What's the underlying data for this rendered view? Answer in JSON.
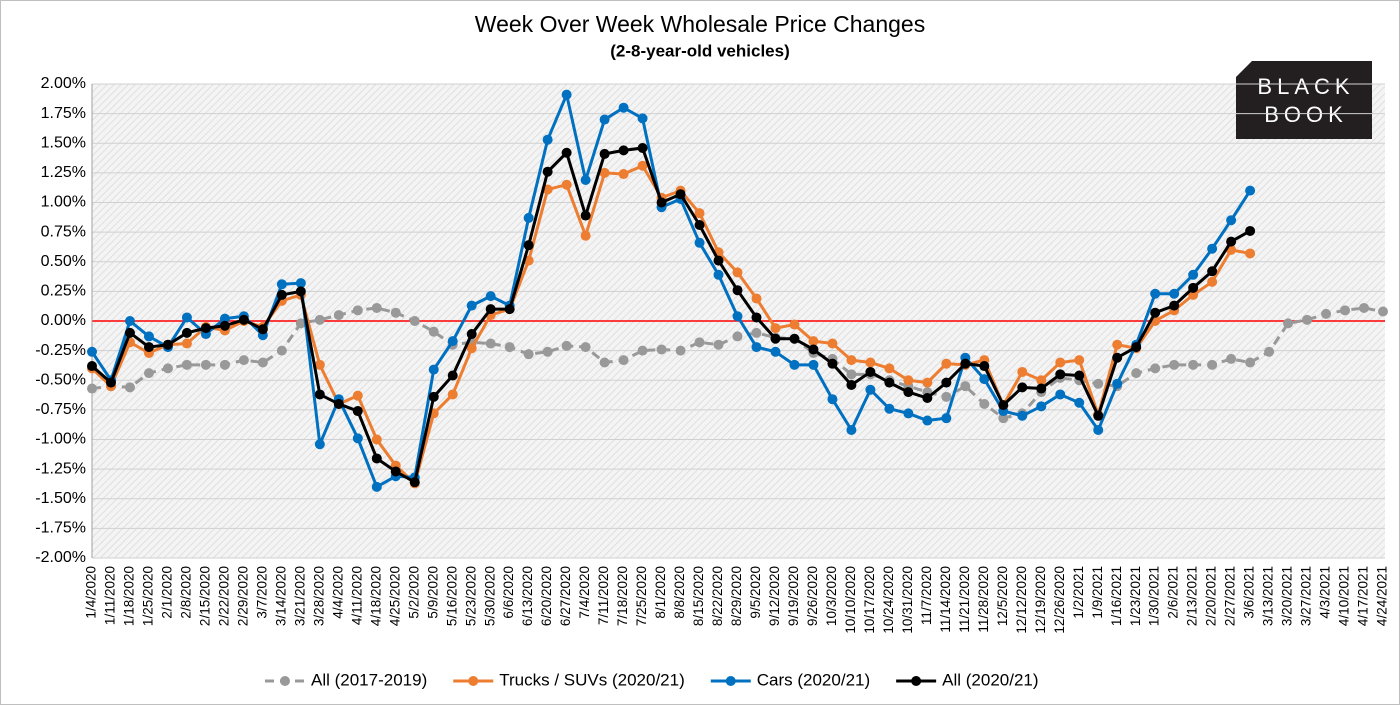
{
  "logo": [
    "BLACK",
    "BOOK"
  ],
  "chart_data": {
    "type": "line",
    "title": "Week Over Week Wholesale Price Changes",
    "subtitle": "(2-8-year-old vehicles)",
    "categories": [
      "1/4/2020",
      "1/11/2020",
      "1/18/2020",
      "1/25/2020",
      "2/1/2020",
      "2/8/2020",
      "2/15/2020",
      "2/22/2020",
      "2/29/2020",
      "3/7/2020",
      "3/14/2020",
      "3/21/2020",
      "3/28/2020",
      "4/4/2020",
      "4/11/2020",
      "4/18/2020",
      "4/25/2020",
      "5/2/2020",
      "5/9/2020",
      "5/16/2020",
      "5/23/2020",
      "5/30/2020",
      "6/6/2020",
      "6/13/2020",
      "6/20/2020",
      "6/27/2020",
      "7/4/2020",
      "7/11/2020",
      "7/18/2020",
      "7/25/2020",
      "8/1/2020",
      "8/8/2020",
      "8/15/2020",
      "8/22/2020",
      "8/29/2020",
      "9/5/2020",
      "9/12/2020",
      "9/19/2020",
      "9/26/2020",
      "10/3/2020",
      "10/10/2020",
      "10/17/2020",
      "10/24/2020",
      "10/31/2020",
      "11/7/2020",
      "11/14/2020",
      "11/21/2020",
      "11/28/2020",
      "12/5/2020",
      "12/12/2020",
      "12/19/2020",
      "12/26/2020",
      "1/2/2021",
      "1/9/2021",
      "1/16/2021",
      "1/23/2021",
      "1/30/2021",
      "2/6/2021",
      "2/13/2021",
      "2/20/2021",
      "2/27/2021",
      "3/6/2021",
      "3/13/2021",
      "3/20/2021",
      "3/27/2021",
      "4/3/2021",
      "4/10/2021",
      "4/17/2021",
      "4/24/2021"
    ],
    "series": [
      {
        "name": "All (2017-2019)",
        "color": "#999999",
        "dash": true,
        "values": [
          -0.57,
          -0.55,
          -0.56,
          -0.44,
          -0.4,
          -0.37,
          -0.37,
          -0.37,
          -0.33,
          -0.35,
          -0.25,
          -0.02,
          0.01,
          0.05,
          0.09,
          0.11,
          0.07,
          0.0,
          -0.09,
          -0.2,
          -0.18,
          -0.19,
          -0.22,
          -0.28,
          -0.26,
          -0.21,
          -0.22,
          -0.35,
          -0.33,
          -0.25,
          -0.24,
          -0.25,
          -0.18,
          -0.2,
          -0.13,
          -0.1,
          -0.14,
          -0.15,
          -0.27,
          -0.32,
          -0.45,
          -0.45,
          -0.5,
          -0.55,
          -0.6,
          -0.64,
          -0.55,
          -0.7,
          -0.82,
          -0.78,
          -0.6,
          -0.48,
          -0.5,
          -0.53,
          -0.55,
          -0.44,
          -0.4,
          -0.37,
          -0.37,
          -0.37,
          -0.32,
          -0.35,
          -0.26,
          -0.02,
          0.01,
          0.06,
          0.09,
          0.11,
          0.08
        ]
      },
      {
        "name": "Trucks / SUVs (2020/21)",
        "color": "#ed7d31",
        "dash": false,
        "values": [
          -0.4,
          -0.55,
          -0.18,
          -0.27,
          -0.2,
          -0.19,
          -0.05,
          -0.08,
          0.0,
          -0.05,
          0.17,
          0.22,
          -0.37,
          -0.7,
          -0.63,
          -1.0,
          -1.22,
          -1.37,
          -0.78,
          -0.62,
          -0.23,
          0.05,
          0.1,
          0.51,
          1.11,
          1.15,
          0.72,
          1.25,
          1.24,
          1.31,
          1.04,
          1.1,
          0.91,
          0.58,
          0.41,
          0.19,
          -0.06,
          -0.03,
          -0.17,
          -0.19,
          -0.33,
          -0.35,
          -0.4,
          -0.5,
          -0.52,
          -0.36,
          -0.37,
          -0.33,
          -0.71,
          -0.43,
          -0.5,
          -0.35,
          -0.33,
          -0.79,
          -0.2,
          -0.23,
          0.0,
          0.09,
          0.22,
          0.33,
          0.6,
          0.57,
          null,
          null,
          null,
          null,
          null,
          null,
          null
        ]
      },
      {
        "name": "Cars (2020/21)",
        "color": "#0070c0",
        "dash": false,
        "values": [
          -0.26,
          -0.5,
          0.0,
          -0.13,
          -0.22,
          0.03,
          -0.11,
          0.02,
          0.04,
          -0.12,
          0.31,
          0.32,
          -1.04,
          -0.66,
          -0.99,
          -1.4,
          -1.31,
          -1.32,
          -0.41,
          -0.17,
          0.13,
          0.21,
          0.13,
          0.87,
          1.53,
          1.91,
          1.19,
          1.7,
          1.8,
          1.71,
          0.96,
          1.03,
          0.66,
          0.39,
          0.04,
          -0.22,
          -0.26,
          -0.37,
          -0.37,
          -0.66,
          -0.92,
          -0.58,
          -0.74,
          -0.78,
          -0.84,
          -0.82,
          -0.31,
          -0.49,
          -0.76,
          -0.8,
          -0.72,
          -0.62,
          -0.69,
          -0.92,
          -0.53,
          -0.2,
          0.23,
          0.23,
          0.39,
          0.61,
          0.85,
          1.1,
          null,
          null,
          null,
          null,
          null,
          null,
          null
        ]
      },
      {
        "name": "All (2020/21)",
        "color": "#000000",
        "dash": false,
        "values": [
          -0.38,
          -0.52,
          -0.1,
          -0.22,
          -0.2,
          -0.1,
          -0.06,
          -0.04,
          0.01,
          -0.07,
          0.22,
          0.25,
          -0.62,
          -0.7,
          -0.76,
          -1.16,
          -1.27,
          -1.36,
          -0.64,
          -0.46,
          -0.11,
          0.1,
          0.1,
          0.64,
          1.26,
          1.42,
          0.89,
          1.41,
          1.44,
          1.46,
          1.0,
          1.07,
          0.81,
          0.51,
          0.26,
          0.03,
          -0.15,
          -0.15,
          -0.24,
          -0.36,
          -0.54,
          -0.43,
          -0.52,
          -0.6,
          -0.65,
          -0.52,
          -0.36,
          -0.38,
          -0.71,
          -0.56,
          -0.57,
          -0.45,
          -0.46,
          -0.8,
          -0.31,
          -0.22,
          0.07,
          0.13,
          0.28,
          0.42,
          0.67,
          0.76,
          null,
          null,
          null,
          null,
          null,
          null,
          null
        ]
      }
    ],
    "ylim": [
      -2,
      2
    ],
    "yticks": [
      {
        "value": -2,
        "label": "-2.00%"
      },
      {
        "value": -1.75,
        "label": "-1.75%"
      },
      {
        "value": -1.5,
        "label": "-1.50%"
      },
      {
        "value": -1.25,
        "label": "-1.25%"
      },
      {
        "value": -1,
        "label": "-1.00%"
      },
      {
        "value": -0.75,
        "label": "-0.75%"
      },
      {
        "value": -0.5,
        "label": "-0.50%"
      },
      {
        "value": -0.25,
        "label": "-0.25%"
      },
      {
        "value": 0,
        "label": "0.00%"
      },
      {
        "value": 0.25,
        "label": "0.25%"
      },
      {
        "value": 0.5,
        "label": "0.50%"
      },
      {
        "value": 0.75,
        "label": "0.75%"
      },
      {
        "value": 1,
        "label": "1.00%"
      },
      {
        "value": 1.25,
        "label": "1.25%"
      },
      {
        "value": 1.5,
        "label": "1.50%"
      },
      {
        "value": 1.75,
        "label": "1.75%"
      },
      {
        "value": 2,
        "label": "2.00%"
      }
    ],
    "grid": true,
    "zero_line_color": "#ff0000",
    "legend": "bottom"
  }
}
